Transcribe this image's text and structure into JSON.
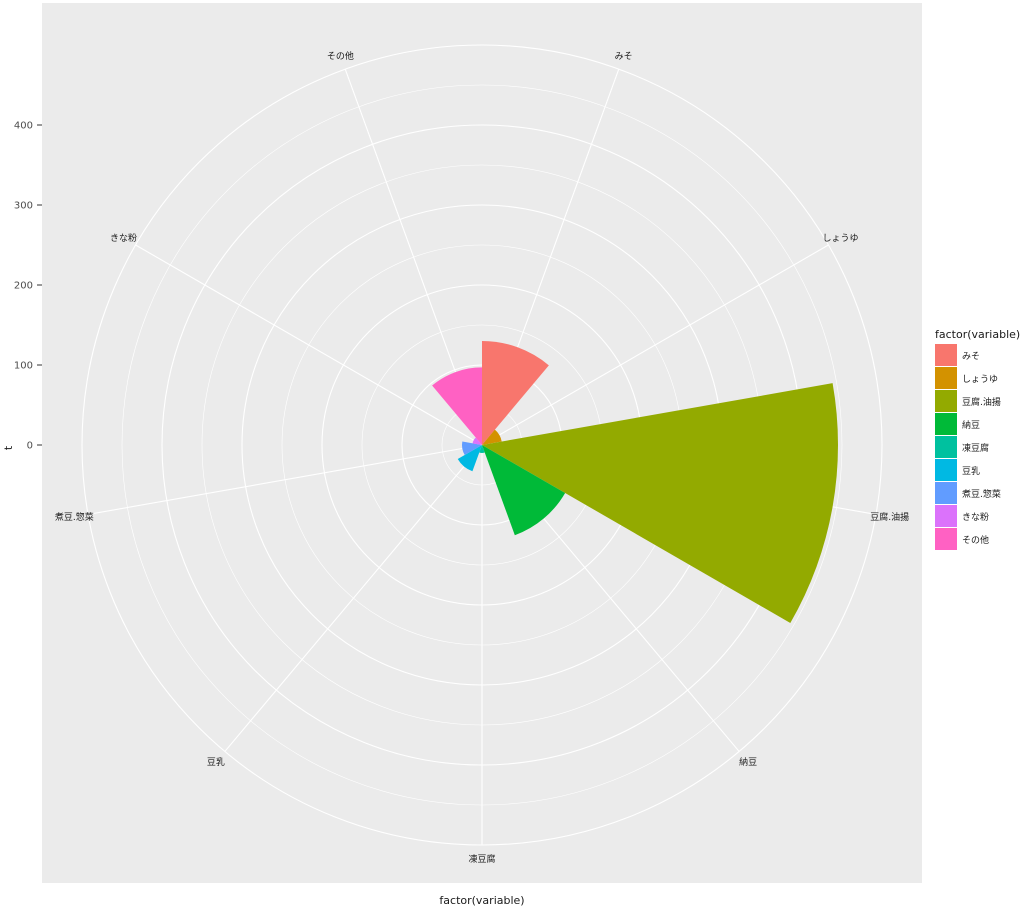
{
  "chart_data": {
    "type": "bar",
    "coord": "polar",
    "categories": [
      "みそ",
      "しょうゆ",
      "豆腐.油揚",
      "納豆",
      "凍豆腐",
      "豆乳",
      "煮豆.惣菜",
      "きな粉",
      "その他"
    ],
    "values": [
      130,
      25,
      445,
      120,
      10,
      35,
      25,
      12,
      97
    ],
    "colors": [
      "#F8766D",
      "#D39200",
      "#93AA00",
      "#00BA38",
      "#00C19F",
      "#00B9E3",
      "#619CFF",
      "#DB72FB",
      "#FF61C3"
    ],
    "ylabel": "t",
    "xlabel": "factor(variable)",
    "y_ticks": [
      0,
      100,
      200,
      300,
      400
    ],
    "ylim": [
      0,
      500
    ],
    "grid": true,
    "legend": {
      "title": "factor(variable)",
      "position": "right"
    }
  }
}
